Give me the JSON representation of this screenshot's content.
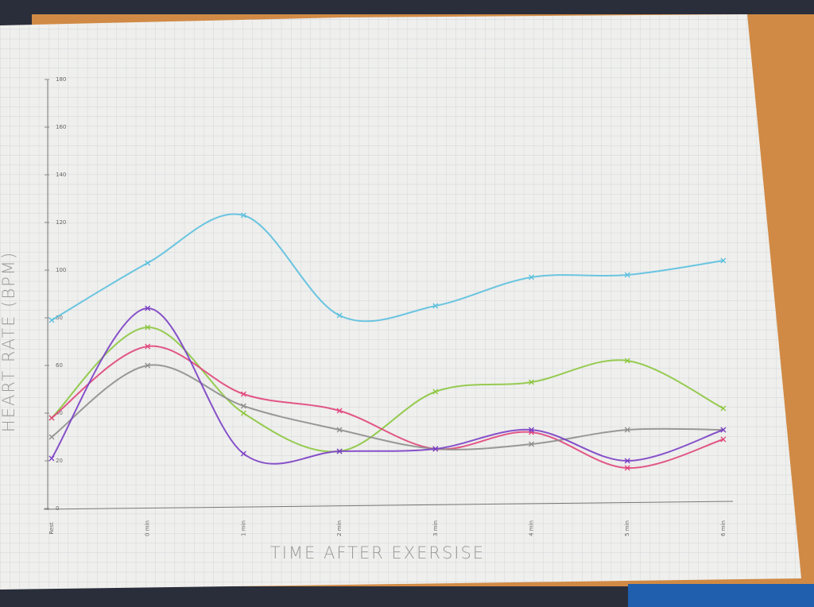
{
  "chart_data": {
    "type": "line",
    "x_label": "TIME AFTER EXERSISE",
    "y_label": "HEART RATE (BPM)",
    "categories": [
      "Rest",
      "0 min",
      "1 min",
      "2 min",
      "3 min",
      "4 min",
      "5 min",
      "6 min"
    ],
    "series": [
      {
        "color": "#5bc0de",
        "values": [
          79,
          103,
          123,
          81,
          85,
          97,
          98,
          104
        ]
      },
      {
        "color": "#8cc63f",
        "values": [
          38,
          76,
          40,
          24,
          49,
          53,
          62,
          42
        ]
      },
      {
        "color": "#e0457b",
        "values": [
          38,
          68,
          48,
          41,
          25,
          32,
          17,
          29
        ]
      },
      {
        "color": "#8e8e8e",
        "values": [
          30,
          60,
          43,
          33,
          25,
          27,
          33,
          33
        ]
      },
      {
        "color": "#7a3fc4",
        "values": [
          21,
          84,
          23,
          24,
          25,
          33,
          20,
          33
        ]
      }
    ],
    "ylim": [
      0,
      180
    ],
    "yticks": [
      0,
      20,
      40,
      60,
      80,
      100,
      120,
      140,
      160,
      180
    ],
    "grid": true
  }
}
